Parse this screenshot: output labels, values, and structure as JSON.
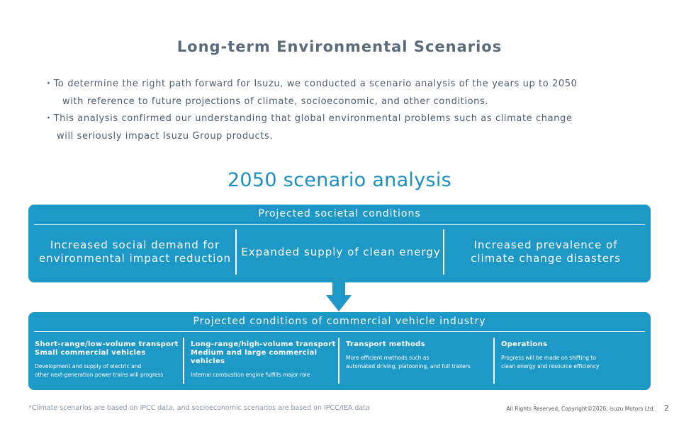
{
  "title": "Long-term Environmental Scenarios",
  "bullets": {
    "b1_line1": "・To determine the right path forward for Isuzu, we conducted a scenario analysis of the years up to 2050",
    "b1_line2": "with reference to future projections of climate, socioeconomic, and other conditions.",
    "b2_line1": "・This analysis confirmed our understanding that global environmental problems such as climate change",
    "b2_line2": "will seriously impact Isuzu Group products."
  },
  "subtitle": "2050 scenario analysis",
  "societal": {
    "header": "Projected societal conditions",
    "items": [
      "Increased social demand for\nenvironmental impact reduction",
      "Expanded supply of clean energy",
      "Increased prevalence of\nclimate change disasters"
    ]
  },
  "industry": {
    "header": "Projected conditions of commercial vehicle industry",
    "items": [
      {
        "heading": "Short-range/low-volume transport\nSmall commercial vehicles",
        "detail": "Development and supply of electric and\nother next-generation power trains will progress"
      },
      {
        "heading": "Long-range/high-volume transport\nMedium and large commercial vehicles",
        "detail": "Internal combustion engine fulfills major role"
      },
      {
        "heading": "Transport methods",
        "detail": "More efficient methods such as\nautomated driving, platooning, and full trailers"
      },
      {
        "heading": "Operations",
        "detail": "Progress will be made on shifting to\nclean energy and resource efficiency"
      }
    ]
  },
  "footnote": "*Climate scenarios are based on IPCC data, and socioeconomic scenarios are based on IPCC/IEA data",
  "copyright": "All Rights Reserved, Copyright©2020, isuzu Motors Ltd.",
  "page_number": "2",
  "colors": {
    "accent": "#1e98c7",
    "title": "#5a6a7a",
    "subtitle": "#1a8fc4"
  }
}
